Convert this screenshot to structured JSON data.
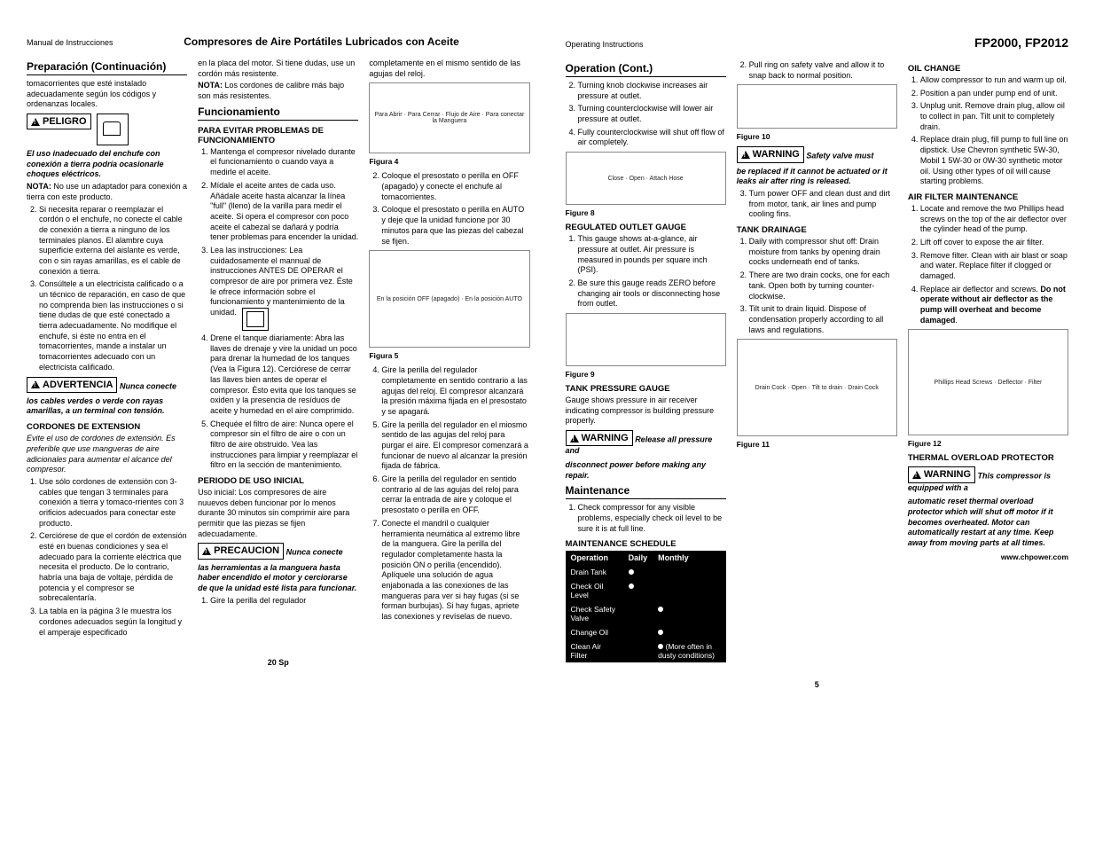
{
  "left_page": {
    "header_left": "Manual de Instrucciones",
    "header_center": "Compresores de Aire Portátiles Lubricados con Aceite",
    "footer": "20 Sp",
    "col1": {
      "h_prep": "Preparación (Continuación)",
      "p_toma": "tomacorrientes que esté instalado adecuadamente según los códigos y ordenanzas locales.",
      "peligro_label": "PELIGRO",
      "peligro_text": "El uso inadecuado del enchufe con conexión a tierra podría ocasionarle choques eléctricos.",
      "nota_label": "NOTA:",
      "nota_text": "No use un adaptador para conexión a tierra con este producto.",
      "li2": "Si necesita reparar o reemplazar el cordón o el enchufe, no conecte el cable de conexión a tierra a ninguno de los terminales planos. El alambre cuya superficie externa del aislante es verde, con o sin rayas amarillas, es el cable de conexión a tierra.",
      "li3": "Consúltele a un electricista calificado o a un técnico de reparación, en caso de que no comprenda bien las instrucciones o si tiene dudas de que esté conectado a tierra adecuadamente. No modifique el enchufe, si éste no entra en el tomacorrientes, mande a instalar un tomacorrientes adecuado con un electricista calificado.",
      "adv_label": "ADVERTENCIA",
      "adv_side": "Nunca conecte",
      "adv_text": "los cables verdes o verde con rayas amarillas, a un terminal con tensión.",
      "h_cord": "CORDONES DE EXTENSION",
      "cord_intro": "Evite el uso de cordones de extensión. Es preferible que use mangueras de aire adicionales para aumentar el alcance del compresor.",
      "cord_li1": "Use sólo cordones de extensión con 3-cables que tengan 3 terminales para conexión a tierra y tomaco-rrientes con 3 orificios adecuados para conectar este producto.",
      "cord_li2": "Cerciórese de que el cordón de extensión esté en buenas condiciones y sea el adecuado para la corriente eléctrica que necesita el producto. De lo contrario, habría una baja de voltaje, pérdida de potencia y el compresor se sobrecalentaría.",
      "cord_li3": "La tabla en la página 3 le muestra los cordones adecuados según la longitud y el amperaje especificado"
    },
    "col2": {
      "p_placa": "en la placa del motor. Si tiene dudas, use un cordón más resistente.",
      "nota2_label": "NOTA:",
      "nota2_text": "Los cordones de calibre más bajo son más resistentes.",
      "h_func": "Funcionamiento",
      "h_evitar": "PARA EVITAR PROBLEMAS DE FUNCIONAMIENTO",
      "li1": "Mantenga el compresor nivelado durante el funcionamiento o cuando vaya a medirle el aceite.",
      "li2": "Mídale el aceite antes de cada uso. Añádale aceite hasta alcanzar la línea \"full\" (lleno) de la varilla para medir el aceite. Si opera el compresor con poco aceite el cabezal se dañará y podría tener problemas para encender la unidad.",
      "li3": "Lea las instrucciones: Lea cuidadosamente el mannual de instrucciones ANTES DE OPERAR el compresor de aire por primera vez. Éste le ofrece información sobre el funcionamiento y mantenimiento de la unidad.",
      "li4": "Drene el tanque diariamente: Abra las llaves de drenaje y vire la unidad un poco para drenar la humedad de los tanques (Vea la Figura 12). Cerciórese de cerrar las llaves bien antes de operar el compresor. Ésto evita que los tanques se oxiden y la presencia de resíduos de aceite y humedad en el aire comprimido.",
      "li5": "Chequée el filtro de aire: Nunca opere el compresor sin el filtro de aire o con un filtro de aire obstruido. Vea las instrucciones para limpiar y reemplazar el filtro en la sección de mantenimiento.",
      "h_periodo": "PERIODO DE USO INICIAL",
      "periodo_text": "Uso inicial: Los compresores de aire nuuevos deben funcionar por lo menos durante 30 minutos sin comprimir aire para permitir que las piezas se fijen adecuadamente.",
      "prec_label": "PRECAUCION",
      "prec_side": "Nunca conecte",
      "prec_text": "las herramientas a la manguera hasta haber encendido el motor y cerciorarse de que la unidad esté lista para funcionar.",
      "prec_li1": "Gire la perilla del regulador"
    },
    "col3": {
      "p_top": "completamente en el mismo sentido de las agujas del reloj.",
      "fig4_labels": "Para Abrir · Para Cerrar · Flujo de Aire · Para conectar la Manguera",
      "fig4": "Figura 4",
      "li2": "Coloque el presostato o perilla en OFF (apagado) y conecte el enchufe al tomacorrientes.",
      "li3": "Coloque el presostato o perilla en AUTO y deje que la unidad funcione por 30 minutos para que las piezas del cabezal se fijen.",
      "fig5_labels": "En la posición OFF (apagado) · En la posición AUTO",
      "fig5": "Figura 5",
      "li4": "Gire la perilla del regulador completamente en sentido contrario a las agujas del reloj. El compresor alcanzará la presión máxima fijada en el presostato y se apagará.",
      "li5": "Gire la perilla del regulador en el miosmo sentido de las agujas del reloj para purgar el aire. El compresor comenzará a funcionar de nuevo al alcanzar la presión fijada de fábrica.",
      "li6": "Gire la perilla del regulador en sentido contrario al de las agujas del reloj para cerrar la entrada de aire y coloque el presostato o perilla en OFF.",
      "li7": "Conecte el mandril o cualquier herramienta neumática al extremo libre de la manguera. Gire la perilla del regulador completamente hasta la posición ON o perilla (encendido). Aplíquele una solución de agua enjabonada a las conexiones de las mangueras para ver si hay fugas (si se forman burbujas). Si hay fugas, apriete las conexiones y revíselas de nuevo."
    }
  },
  "right_page": {
    "header_left": "Operating Instructions",
    "header_right": "FP2000, FP2012",
    "footer": "5",
    "website": "www.chpower.com",
    "col1": {
      "h_op": "Operation (Cont.)",
      "li2": "Turning knob clockwise increases air pressure at outlet.",
      "li3": "Turning counterclockwise will lower air pressure at outlet.",
      "li4": "Fully counterclockwise will shut off flow of air completely.",
      "fig8_labels": "Close · Open · Attach Hose",
      "fig8": "Figure 8",
      "h_reg": "REGULATED OUTLET GAUGE",
      "reg_li1": "This gauge shows at-a-glance, air pressure at outlet. Air pressure is measured in pounds per square inch (PSI).",
      "reg_li2": "Be sure this gauge reads ZERO before changing air tools or disconnecting hose from outlet.",
      "fig9": "Figure 9",
      "h_tank": "TANK PRESSURE GAUGE",
      "tank_text": "Gauge shows pressure in air receiver indicating compressor is building pressure properly.",
      "warn1_label": "WARNING",
      "warn1_side": "Release all pressure and",
      "warn1_text": "disconnect power before making any repair.",
      "h_maint": "Maintenance",
      "maint_li1": "Check compressor for any visible problems, especially check oil level to be sure it is at full line.",
      "h_sched": "MAINTENANCE SCHEDULE",
      "sched_cols": [
        "Operation",
        "Daily",
        "Monthly"
      ],
      "sched_rows": [
        {
          "op": "Drain Tank",
          "daily": true,
          "monthly": false,
          "note": ""
        },
        {
          "op": "Check Oil Level",
          "daily": true,
          "monthly": false,
          "note": ""
        },
        {
          "op": "Check Safety Valve",
          "daily": false,
          "monthly": true,
          "note": ""
        },
        {
          "op": "Change Oil",
          "daily": false,
          "monthly": true,
          "note": ""
        },
        {
          "op": "Clean Air Filter",
          "daily": false,
          "monthly": true,
          "note": "(More often in dusty conditions)"
        }
      ]
    },
    "col2": {
      "li2": "Pull ring on safety valve and allow it to snap back to normal position.",
      "fig10": "Figure 10",
      "warn2_label": "WARNING",
      "warn2_side": "Safety valve must",
      "warn2_text": "be replaced if it cannot be actuated or it leaks air after ring is released.",
      "li3": "Turn power OFF and clean dust and dirt from motor, tank, air lines and pump cooling fins.",
      "h_drain": "TANK DRAINAGE",
      "drain_li1": "Daily with compressor shut off: Drain moisture from tanks by opening drain cocks underneath end of tanks.",
      "drain_li2": "There are two drain cocks, one for each tank. Open both by turning counter-clockwise.",
      "drain_li3": "Tilt unit to drain liquid. Dispose of condensation properly according to all laws and regulations.",
      "fig11_labels": "Drain Cock · Open · Tilt to drain · Drain Cock",
      "fig11": "Figure 11"
    },
    "col3": {
      "h_oil": "OIL CHANGE",
      "oil_li1": "Allow compressor to run and warm up oil.",
      "oil_li2": "Position a pan under pump end of unit.",
      "oil_li3": "Unplug unit. Remove drain plug, allow oil to collect in pan. Tilt unit to completely drain.",
      "oil_li4": "Replace drain plug, fill pump to full line on dipstick. Use Chevron synthetic 5W-30, Mobil 1 5W-30 or 0W-30 synthetic motor oil. Using other types of oil will cause starting problems.",
      "h_filter": "AIR FILTER MAINTENANCE",
      "filt_li1": "Locate and remove the two Phillips head screws on the top of the air deflector over the cylinder head of the pump.",
      "filt_li2": "Lift off cover to expose the air filter.",
      "filt_li3": "Remove filter. Clean with air blast or soap and water. Replace filter if clogged or damaged.",
      "filt_li4_a": "Replace air deflector and screws. ",
      "filt_li4_b": "Do not operate without air deflector as the pump will overheat and become damaged",
      "fig12_labels": "Phillips Head Screws · Deflector · Filter",
      "fig12": "Figure 12",
      "h_thermal": "THERMAL OVERLOAD PROTECTOR",
      "warn3_label": "WARNING",
      "warn3_side": "This compressor is equipped with a",
      "warn3_text": "automatic reset thermal overload protector which will shut off motor if it becomes overheated. Motor can automatically restart at any time. Keep away from moving parts at all times."
    }
  }
}
